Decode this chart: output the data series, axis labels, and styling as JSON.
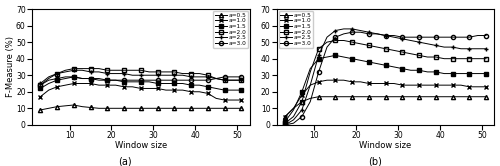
{
  "x": [
    3,
    5,
    7,
    9,
    11,
    13,
    15,
    17,
    19,
    21,
    23,
    25,
    27,
    29,
    31,
    33,
    35,
    37,
    39,
    41,
    43,
    45,
    47,
    49,
    51
  ],
  "panel_a": {
    "a05": [
      9,
      10,
      11,
      11.5,
      12,
      11,
      10.5,
      10,
      10,
      10,
      10,
      10,
      10,
      10,
      10,
      10,
      10,
      10,
      10,
      10,
      10,
      10,
      10,
      10,
      10
    ],
    "a10": [
      17,
      21,
      23,
      24,
      25,
      25,
      25,
      24,
      24,
      24,
      23,
      23,
      22,
      22,
      22,
      21,
      21,
      21,
      20,
      20,
      19,
      16,
      15,
      15,
      15
    ],
    "a15": [
      22,
      25,
      27,
      28,
      29,
      28,
      28,
      27,
      27,
      27,
      26,
      26,
      26,
      26,
      25,
      25,
      25,
      25,
      24,
      24,
      23,
      22,
      21,
      21,
      21
    ],
    "a20": [
      24,
      28,
      31,
      33,
      34,
      34,
      34,
      34,
      33,
      33,
      33,
      33,
      33,
      32,
      32,
      32,
      32,
      31,
      31,
      31,
      30,
      28,
      27,
      27,
      27
    ],
    "a25": [
      25,
      29,
      31,
      32,
      33,
      33,
      32,
      32,
      31,
      31,
      31,
      30,
      30,
      30,
      30,
      30,
      30,
      30,
      29,
      29,
      29,
      28,
      27,
      27,
      27
    ],
    "a30": [
      24,
      27,
      28,
      29,
      29,
      28,
      28,
      28,
      27,
      27,
      27,
      27,
      27,
      27,
      27,
      27,
      27,
      27,
      27,
      27,
      27,
      28,
      29,
      29,
      29
    ]
  },
  "panel_b": {
    "a05": [
      5,
      10,
      14,
      16,
      17,
      17,
      17,
      17,
      17,
      17,
      17,
      17,
      17,
      17,
      17,
      17,
      17,
      17,
      17,
      17,
      17,
      17,
      17,
      17,
      17
    ],
    "a10": [
      5,
      10,
      18,
      24,
      26,
      27,
      27,
      27,
      26,
      26,
      25,
      25,
      25,
      25,
      24,
      24,
      24,
      24,
      24,
      24,
      24,
      24,
      23,
      23,
      23
    ],
    "a15": [
      2,
      9,
      20,
      34,
      40,
      41,
      42,
      41,
      40,
      39,
      38,
      37,
      36,
      35,
      34,
      33,
      33,
      32,
      32,
      31,
      31,
      31,
      31,
      31,
      31
    ],
    "a20": [
      1,
      5,
      14,
      32,
      46,
      50,
      51,
      51,
      50,
      49,
      48,
      47,
      46,
      45,
      44,
      43,
      42,
      41,
      41,
      40,
      40,
      40,
      40,
      40,
      40
    ],
    "a25": [
      0,
      3,
      9,
      24,
      42,
      53,
      57,
      58,
      58,
      57,
      56,
      55,
      54,
      53,
      52,
      51,
      50,
      49,
      48,
      47,
      47,
      46,
      46,
      46,
      46
    ],
    "a30": [
      0,
      1,
      5,
      14,
      32,
      47,
      53,
      55,
      56,
      56,
      55,
      55,
      54,
      54,
      53,
      53,
      53,
      53,
      53,
      53,
      53,
      53,
      53,
      54,
      54
    ]
  },
  "markers": [
    "^",
    "x",
    "s",
    "s",
    "+",
    "o"
  ],
  "labels": [
    "a=0.5",
    "a=1.0",
    "a=1.5",
    "a=2.0",
    "a=2.5",
    "a=3.0"
  ],
  "fillstyles_a": [
    "none",
    "none",
    "full",
    "none",
    "none",
    "none"
  ],
  "fillstyles_b": [
    "none",
    "none",
    "full",
    "none",
    "none",
    "none"
  ],
  "xlabel": "Window size",
  "ylabel": "F-Measure (%)",
  "ylim": [
    0,
    70
  ],
  "xlim": [
    1,
    53
  ],
  "xticks": [
    10,
    20,
    30,
    40,
    50
  ],
  "yticks": [
    0,
    10,
    20,
    30,
    40,
    50,
    60,
    70
  ],
  "label_a": "(a)",
  "label_b": "(b)",
  "linewidth": 0.7,
  "markersize": 3.0
}
